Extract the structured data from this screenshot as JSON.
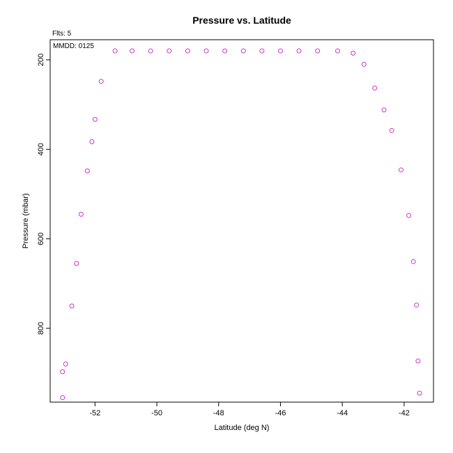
{
  "header": {
    "flts": "Flts: 5",
    "mmdd": "MMDD: 0125"
  },
  "colors": {
    "marker": "#cc33cc",
    "frame": "#000000",
    "background": "#ffffff"
  },
  "chart_data": {
    "type": "scatter",
    "title": "Pressure vs. Latitude",
    "xlabel": "Latitude (deg N)",
    "ylabel": "Pressure (mbar)",
    "xlim": [
      -53.45,
      -41.05
    ],
    "ylim": [
      965,
      155
    ],
    "y_inverted": true,
    "grid": false,
    "marker": "open-circle",
    "xticks": [
      -52,
      -50,
      -48,
      -46,
      -44,
      -42
    ],
    "yticks": [
      200,
      400,
      600,
      800
    ],
    "series": [
      {
        "points": [
          [
            -53.05,
            955
          ],
          [
            -53.05,
            897
          ],
          [
            -52.95,
            880
          ],
          [
            -52.75,
            750
          ],
          [
            -52.6,
            655
          ],
          [
            -52.45,
            545
          ],
          [
            -52.25,
            448
          ],
          [
            -52.1,
            383
          ],
          [
            -52.0,
            333
          ],
          [
            -51.8,
            248
          ],
          [
            -51.35,
            180
          ],
          [
            -50.8,
            180
          ],
          [
            -50.2,
            180
          ],
          [
            -49.6,
            180
          ],
          [
            -49.0,
            180
          ],
          [
            -48.4,
            180
          ],
          [
            -47.8,
            180
          ],
          [
            -47.2,
            180
          ],
          [
            -46.6,
            180
          ],
          [
            -46.0,
            180
          ],
          [
            -45.4,
            180
          ],
          [
            -44.8,
            180
          ],
          [
            -44.15,
            180
          ],
          [
            -43.65,
            185
          ],
          [
            -43.3,
            210
          ],
          [
            -42.95,
            263
          ],
          [
            -42.65,
            312
          ],
          [
            -42.4,
            358
          ],
          [
            -42.1,
            446
          ],
          [
            -41.85,
            548
          ],
          [
            -41.7,
            651
          ],
          [
            -41.6,
            748
          ],
          [
            -41.55,
            873
          ],
          [
            -41.5,
            945
          ]
        ]
      }
    ]
  }
}
